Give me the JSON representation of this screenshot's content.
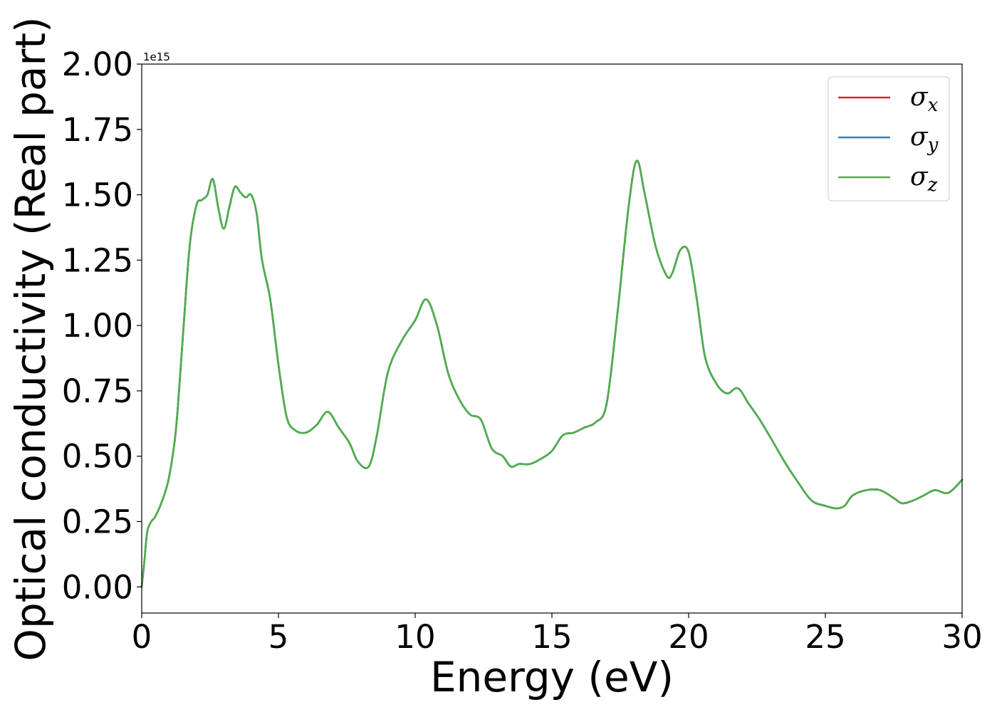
{
  "chart_data": {
    "type": "line",
    "title": "",
    "xlabel": "Energy (eV)",
    "ylabel": "Optical conductivity (Real part)",
    "y_offset_text": "1e15",
    "xlim": [
      0,
      30
    ],
    "ylim": [
      -0.1,
      2.0
    ],
    "xticks": [
      0,
      5,
      10,
      15,
      20,
      25,
      30
    ],
    "xtick_labels": [
      "0",
      "5",
      "10",
      "15",
      "20",
      "25",
      "30"
    ],
    "yticks": [
      0.0,
      0.25,
      0.5,
      0.75,
      1.0,
      1.25,
      1.5,
      1.75,
      2.0
    ],
    "ytick_labels": [
      "0.00",
      "0.25",
      "0.50",
      "0.75",
      "1.00",
      "1.25",
      "1.50",
      "1.75",
      "2.00"
    ],
    "grid": false,
    "legend_position": "top-right",
    "series": [
      {
        "name": "σx",
        "symbol": "σ",
        "sub": "x",
        "color": "#d62728"
      },
      {
        "name": "σy",
        "symbol": "σ",
        "sub": "y",
        "color": "#3a7fb8"
      },
      {
        "name": "σz",
        "symbol": "σ",
        "sub": "z",
        "color": "#4daf4a"
      }
    ],
    "x": [
      0,
      0.1,
      0.2,
      0.35,
      0.5,
      0.75,
      1.0,
      1.25,
      1.5,
      1.75,
      2.0,
      2.2,
      2.4,
      2.6,
      2.8,
      3.0,
      3.2,
      3.4,
      3.6,
      3.8,
      4.0,
      4.2,
      4.4,
      4.7,
      5.0,
      5.3,
      5.6,
      6.0,
      6.4,
      6.8,
      7.2,
      7.6,
      7.9,
      8.3,
      8.6,
      9.0,
      9.5,
      10.0,
      10.4,
      10.8,
      11.2,
      11.6,
      12.0,
      12.4,
      12.8,
      13.2,
      13.5,
      13.8,
      14.2,
      14.6,
      15.0,
      15.4,
      15.8,
      16.2,
      16.6,
      17.0,
      17.4,
      17.8,
      18.1,
      18.4,
      18.8,
      19.2,
      19.4,
      19.7,
      20.0,
      20.3,
      20.6,
      21.0,
      21.4,
      21.8,
      22.2,
      22.6,
      23.0,
      23.5,
      24.0,
      24.5,
      25.0,
      25.4,
      25.7,
      26.0,
      26.5,
      27.0,
      27.5,
      27.8,
      28.2,
      28.6,
      29.0,
      29.5,
      30.0
    ],
    "values": [
      0.0,
      0.1,
      0.21,
      0.25,
      0.27,
      0.33,
      0.42,
      0.6,
      0.95,
      1.3,
      1.46,
      1.48,
      1.5,
      1.56,
      1.45,
      1.37,
      1.45,
      1.53,
      1.51,
      1.49,
      1.5,
      1.43,
      1.25,
      1.1,
      0.85,
      0.65,
      0.6,
      0.59,
      0.62,
      0.67,
      0.61,
      0.55,
      0.48,
      0.46,
      0.58,
      0.82,
      0.94,
      1.02,
      1.1,
      1.0,
      0.82,
      0.72,
      0.66,
      0.64,
      0.53,
      0.5,
      0.46,
      0.47,
      0.47,
      0.49,
      0.52,
      0.58,
      0.59,
      0.61,
      0.63,
      0.7,
      1.05,
      1.45,
      1.63,
      1.5,
      1.3,
      1.19,
      1.2,
      1.29,
      1.28,
      1.1,
      0.88,
      0.78,
      0.74,
      0.76,
      0.7,
      0.64,
      0.57,
      0.48,
      0.4,
      0.33,
      0.31,
      0.3,
      0.31,
      0.35,
      0.37,
      0.37,
      0.34,
      0.32,
      0.33,
      0.35,
      0.37,
      0.36,
      0.41
    ]
  }
}
